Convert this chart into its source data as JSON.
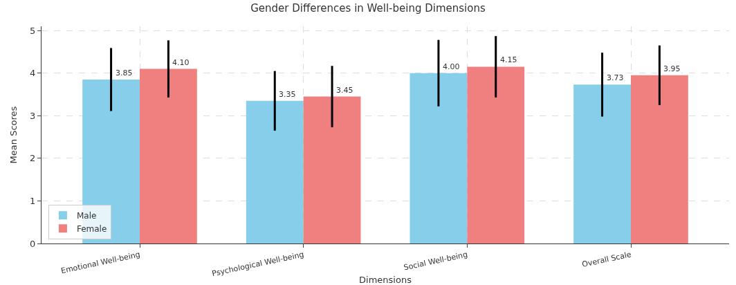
{
  "chart_data": {
    "type": "bar",
    "title": "Gender Differences in Well-being Dimensions",
    "xlabel": "Dimensions",
    "ylabel": "Mean Scores",
    "categories": [
      "Emotional Well-being",
      "Psychological Well-being",
      "Social Well-being",
      "Overall Scale"
    ],
    "series": [
      {
        "name": "Male",
        "color": "#87ceeb",
        "values": [
          3.85,
          3.35,
          4.0,
          3.73
        ],
        "errors": [
          0.74,
          0.7,
          0.78,
          0.75
        ],
        "value_labels": [
          "3.85",
          "3.35",
          "4.00",
          "3.73"
        ]
      },
      {
        "name": "Female",
        "color": "#f08080",
        "values": [
          4.1,
          3.45,
          4.15,
          3.95
        ],
        "errors": [
          0.67,
          0.72,
          0.72,
          0.7
        ],
        "value_labels": [
          "4.10",
          "3.45",
          "4.15",
          "3.95"
        ]
      }
    ],
    "ylim": [
      0,
      5.1
    ],
    "yticks": [
      0,
      1,
      2,
      3,
      4,
      5
    ],
    "grid": true,
    "legend": "bottom left"
  }
}
